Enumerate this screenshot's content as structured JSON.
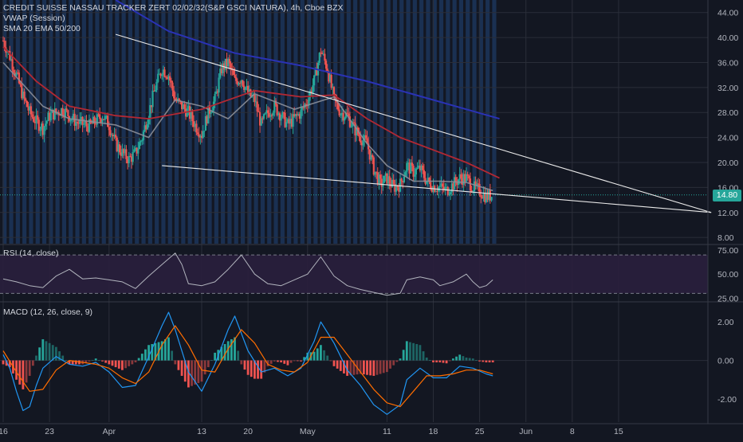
{
  "main_legend": {
    "title": "CREDIT SUISSE NASSAU TRACKER ZERT 02/02/32(S&P GSCI NATURA), 4h, Cboe BZX",
    "vwap": "VWAP (Session)",
    "ma": "SMA 20 EMA 50/200"
  },
  "rsi_legend": "RSI (14, close)",
  "macd_legend": "MACD (12, 26, close, 9)",
  "last_price_label": "14.80",
  "colors": {
    "background": "#131722",
    "session_band": "#1e3a63",
    "up_candle": "#26a69a",
    "down_candle": "#ef5350",
    "ema50": "#b22833",
    "ema200": "#2a32b5",
    "sma20": "#8c8f99",
    "trendline": "#e8e8e8",
    "rsi_line": "#b2b5be",
    "rsi_band": "#2a1f3d",
    "macd_line": "#2196f3",
    "signal_line": "#ff6d00"
  },
  "chart_data": [
    {
      "type": "candlestick",
      "title": "CREDIT SUISSE NASSAU TRACKER ZERT 02/02/32(S&P GSCI NATURA), 4h, Cboe BZX",
      "x_tick_labels": [
        "16",
        "23",
        "Apr",
        "13",
        "20",
        "May",
        "11",
        "18",
        "25",
        "Jun",
        "8",
        "15"
      ],
      "y_tick_labels": [
        "8.00",
        "12.00",
        "16.00",
        "20.00",
        "24.00",
        "28.00",
        "32.00",
        "36.00",
        "40.00",
        "44.00"
      ],
      "ylim": [
        7,
        46
      ],
      "last_price": 14.8,
      "close_path": [
        {
          "day": 0,
          "price": 39.5
        },
        {
          "day": 1,
          "price": 37.0
        },
        {
          "day": 2,
          "price": 34.0
        },
        {
          "day": 3,
          "price": 30.5
        },
        {
          "day": 4,
          "price": 28.0
        },
        {
          "day": 5,
          "price": 26.5
        },
        {
          "day": 6,
          "price": 25.5
        },
        {
          "day": 7,
          "price": 27.5
        },
        {
          "day": 9,
          "price": 28.5
        },
        {
          "day": 11,
          "price": 26.5
        },
        {
          "day": 13,
          "price": 25.8
        },
        {
          "day": 15,
          "price": 27.5
        },
        {
          "day": 16,
          "price": 26.0
        },
        {
          "day": 17,
          "price": 23.0
        },
        {
          "day": 18,
          "price": 21.5
        },
        {
          "day": 19,
          "price": 20.5
        },
        {
          "day": 20,
          "price": 21.5
        },
        {
          "day": 21,
          "price": 24.0
        },
        {
          "day": 22,
          "price": 28.0
        },
        {
          "day": 23,
          "price": 32.0
        },
        {
          "day": 24,
          "price": 35.0
        },
        {
          "day": 25,
          "price": 34.0
        },
        {
          "day": 26,
          "price": 30.0
        },
        {
          "day": 27,
          "price": 29.0
        },
        {
          "day": 28,
          "price": 28.0
        },
        {
          "day": 29,
          "price": 26.0
        },
        {
          "day": 30,
          "price": 24.5
        },
        {
          "day": 31,
          "price": 28.0
        },
        {
          "day": 32,
          "price": 30.0
        },
        {
          "day": 33,
          "price": 35.0
        },
        {
          "day": 34,
          "price": 36.0
        },
        {
          "day": 35,
          "price": 33.0
        },
        {
          "day": 36,
          "price": 33.5
        },
        {
          "day": 37,
          "price": 31.0
        },
        {
          "day": 38,
          "price": 30.0
        },
        {
          "day": 39,
          "price": 26.0
        },
        {
          "day": 40,
          "price": 28.0
        },
        {
          "day": 41,
          "price": 29.0
        },
        {
          "day": 42,
          "price": 27.5
        },
        {
          "day": 43,
          "price": 26.0
        },
        {
          "day": 44,
          "price": 27.0
        },
        {
          "day": 45,
          "price": 28.0
        },
        {
          "day": 46,
          "price": 30.0
        },
        {
          "day": 47,
          "price": 33.0
        },
        {
          "day": 48,
          "price": 38.0
        },
        {
          "day": 49,
          "price": 35.0
        },
        {
          "day": 50,
          "price": 30.0
        },
        {
          "day": 51,
          "price": 28.0
        },
        {
          "day": 52,
          "price": 27.5
        },
        {
          "day": 53,
          "price": 25.5
        },
        {
          "day": 54,
          "price": 24.0
        },
        {
          "day": 55,
          "price": 23.0
        },
        {
          "day": 56,
          "price": 19.0
        },
        {
          "day": 57,
          "price": 16.5
        },
        {
          "day": 58,
          "price": 17.5
        },
        {
          "day": 59,
          "price": 16.0
        },
        {
          "day": 60,
          "price": 16.5
        },
        {
          "day": 61,
          "price": 19.5
        },
        {
          "day": 62,
          "price": 18.5
        },
        {
          "day": 63,
          "price": 19.0
        },
        {
          "day": 64,
          "price": 17.0
        },
        {
          "day": 65,
          "price": 16.2
        },
        {
          "day": 66,
          "price": 16.0
        },
        {
          "day": 67,
          "price": 15.5
        },
        {
          "day": 68,
          "price": 16.5
        },
        {
          "day": 69,
          "price": 17.5
        },
        {
          "day": 70,
          "price": 17.5
        },
        {
          "day": 71,
          "price": 16.0
        },
        {
          "day": 72,
          "price": 15.5
        },
        {
          "day": 73,
          "price": 14.5
        },
        {
          "day": 74,
          "price": 14.8
        }
      ],
      "ema50": [
        {
          "day": 0,
          "value": 38.5
        },
        {
          "day": 5,
          "value": 33.0
        },
        {
          "day": 10,
          "value": 29.0
        },
        {
          "day": 17,
          "value": 27.5
        },
        {
          "day": 22,
          "value": 27.0
        },
        {
          "day": 30,
          "value": 28.5
        },
        {
          "day": 38,
          "value": 31.5
        },
        {
          "day": 45,
          "value": 30.5
        },
        {
          "day": 50,
          "value": 30.8
        },
        {
          "day": 55,
          "value": 27.0
        },
        {
          "day": 60,
          "value": 24.0
        },
        {
          "day": 65,
          "value": 22.0
        },
        {
          "day": 70,
          "value": 20.0
        },
        {
          "day": 75,
          "value": 17.5
        }
      ],
      "ema200": [
        {
          "day": 17,
          "value": 46.0
        },
        {
          "day": 25,
          "value": 41.0
        },
        {
          "day": 35,
          "value": 37.5
        },
        {
          "day": 45,
          "value": 35.5
        },
        {
          "day": 55,
          "value": 33.0
        },
        {
          "day": 65,
          "value": 30.0
        },
        {
          "day": 75,
          "value": 27.0
        }
      ],
      "sma20": [
        {
          "day": 0,
          "value": 36.0
        },
        {
          "day": 6,
          "value": 29.0
        },
        {
          "day": 10,
          "value": 27.0
        },
        {
          "day": 17,
          "value": 26.0
        },
        {
          "day": 22,
          "value": 24.0
        },
        {
          "day": 26,
          "value": 30.0
        },
        {
          "day": 30,
          "value": 29.0
        },
        {
          "day": 34,
          "value": 27.0
        },
        {
          "day": 38,
          "value": 31.0
        },
        {
          "day": 44,
          "value": 28.5
        },
        {
          "day": 50,
          "value": 30.5
        },
        {
          "day": 55,
          "value": 23.0
        },
        {
          "day": 58,
          "value": 19.5
        },
        {
          "day": 62,
          "value": 17.0
        },
        {
          "day": 66,
          "value": 17.0
        },
        {
          "day": 70,
          "value": 16.8
        },
        {
          "day": 74,
          "value": 15.5
        }
      ],
      "trendlines": [
        {
          "from": {
            "day": 17,
            "price": 40.5
          },
          "to": {
            "day": 107,
            "price": 12.0
          }
        },
        {
          "from": {
            "day": 24,
            "price": 19.5
          },
          "to": {
            "day": 107,
            "price": 12.0
          }
        }
      ]
    },
    {
      "type": "line",
      "title": "RSI (14, close)",
      "y_tick_labels": [
        "25.00",
        "50.00",
        "75.00"
      ],
      "ylim": [
        22,
        80
      ],
      "band": [
        30,
        70
      ],
      "values": [
        {
          "day": 0,
          "value": 45
        },
        {
          "day": 2,
          "value": 42
        },
        {
          "day": 4,
          "value": 38
        },
        {
          "day": 6,
          "value": 36
        },
        {
          "day": 8,
          "value": 48
        },
        {
          "day": 10,
          "value": 55
        },
        {
          "day": 12,
          "value": 45
        },
        {
          "day": 14,
          "value": 46
        },
        {
          "day": 16,
          "value": 44
        },
        {
          "day": 18,
          "value": 42
        },
        {
          "day": 20,
          "value": 35
        },
        {
          "day": 22,
          "value": 48
        },
        {
          "day": 24,
          "value": 60
        },
        {
          "day": 26,
          "value": 72
        },
        {
          "day": 27,
          "value": 60
        },
        {
          "day": 28,
          "value": 40
        },
        {
          "day": 30,
          "value": 38
        },
        {
          "day": 32,
          "value": 42
        },
        {
          "day": 34,
          "value": 55
        },
        {
          "day": 36,
          "value": 70
        },
        {
          "day": 38,
          "value": 50
        },
        {
          "day": 40,
          "value": 40
        },
        {
          "day": 42,
          "value": 38
        },
        {
          "day": 44,
          "value": 44
        },
        {
          "day": 46,
          "value": 50
        },
        {
          "day": 48,
          "value": 68
        },
        {
          "day": 50,
          "value": 48
        },
        {
          "day": 52,
          "value": 38
        },
        {
          "day": 54,
          "value": 34
        },
        {
          "day": 56,
          "value": 31
        },
        {
          "day": 58,
          "value": 28
        },
        {
          "day": 60,
          "value": 30
        },
        {
          "day": 61,
          "value": 44
        },
        {
          "day": 63,
          "value": 47
        },
        {
          "day": 65,
          "value": 44
        },
        {
          "day": 66,
          "value": 38
        },
        {
          "day": 68,
          "value": 42
        },
        {
          "day": 70,
          "value": 50
        },
        {
          "day": 71,
          "value": 42
        },
        {
          "day": 72,
          "value": 36
        },
        {
          "day": 73,
          "value": 38
        },
        {
          "day": 74,
          "value": 44
        }
      ]
    },
    {
      "type": "macd",
      "title": "MACD (12, 26, close, 9)",
      "y_tick_labels": [
        "-2.00",
        "0.00",
        "2.00"
      ],
      "ylim": [
        -3.2,
        3.0
      ],
      "macd_line": [
        {
          "day": 0,
          "value": 0.3
        },
        {
          "day": 1,
          "value": -0.4
        },
        {
          "day": 2,
          "value": -1.6
        },
        {
          "day": 3,
          "value": -2.6
        },
        {
          "day": 4,
          "value": -2.4
        },
        {
          "day": 5,
          "value": -1.3
        },
        {
          "day": 6,
          "value": -0.4
        },
        {
          "day": 8,
          "value": 0.2
        },
        {
          "day": 10,
          "value": -0.2
        },
        {
          "day": 12,
          "value": -0.3
        },
        {
          "day": 14,
          "value": -0.1
        },
        {
          "day": 16,
          "value": -0.6
        },
        {
          "day": 18,
          "value": -1.4
        },
        {
          "day": 20,
          "value": -1.3
        },
        {
          "day": 22,
          "value": 0.2
        },
        {
          "day": 24,
          "value": 1.8
        },
        {
          "day": 25,
          "value": 2.5
        },
        {
          "day": 26,
          "value": 1.6
        },
        {
          "day": 28,
          "value": -0.6
        },
        {
          "day": 30,
          "value": -1.6
        },
        {
          "day": 32,
          "value": -0.2
        },
        {
          "day": 34,
          "value": 1.6
        },
        {
          "day": 35,
          "value": 2.3
        },
        {
          "day": 37,
          "value": 0.5
        },
        {
          "day": 39,
          "value": -0.6
        },
        {
          "day": 41,
          "value": -0.4
        },
        {
          "day": 43,
          "value": -0.8
        },
        {
          "day": 45,
          "value": -0.4
        },
        {
          "day": 47,
          "value": 1.0
        },
        {
          "day": 48,
          "value": 2.0
        },
        {
          "day": 50,
          "value": 0.9
        },
        {
          "day": 52,
          "value": -0.5
        },
        {
          "day": 54,
          "value": -1.3
        },
        {
          "day": 56,
          "value": -2.3
        },
        {
          "day": 58,
          "value": -2.8
        },
        {
          "day": 60,
          "value": -2.3
        },
        {
          "day": 61,
          "value": -1.0
        },
        {
          "day": 63,
          "value": -0.4
        },
        {
          "day": 65,
          "value": -0.9
        },
        {
          "day": 67,
          "value": -0.9
        },
        {
          "day": 69,
          "value": -0.3
        },
        {
          "day": 71,
          "value": -0.4
        },
        {
          "day": 73,
          "value": -0.7
        },
        {
          "day": 74,
          "value": -0.8
        }
      ],
      "signal_line": [
        {
          "day": 0,
          "value": 0.5
        },
        {
          "day": 2,
          "value": -0.6
        },
        {
          "day": 4,
          "value": -1.6
        },
        {
          "day": 6,
          "value": -1.5
        },
        {
          "day": 8,
          "value": -0.5
        },
        {
          "day": 10,
          "value": 0.0
        },
        {
          "day": 12,
          "value": -0.1
        },
        {
          "day": 14,
          "value": -0.2
        },
        {
          "day": 16,
          "value": -0.4
        },
        {
          "day": 18,
          "value": -0.9
        },
        {
          "day": 20,
          "value": -1.2
        },
        {
          "day": 22,
          "value": -0.6
        },
        {
          "day": 24,
          "value": 0.8
        },
        {
          "day": 26,
          "value": 1.8
        },
        {
          "day": 28,
          "value": 0.8
        },
        {
          "day": 30,
          "value": -0.5
        },
        {
          "day": 32,
          "value": -0.6
        },
        {
          "day": 34,
          "value": 0.6
        },
        {
          "day": 36,
          "value": 1.6
        },
        {
          "day": 38,
          "value": 0.9
        },
        {
          "day": 40,
          "value": -0.2
        },
        {
          "day": 42,
          "value": -0.5
        },
        {
          "day": 44,
          "value": -0.6
        },
        {
          "day": 46,
          "value": -0.1
        },
        {
          "day": 48,
          "value": 1.2
        },
        {
          "day": 50,
          "value": 1.2
        },
        {
          "day": 52,
          "value": 0.3
        },
        {
          "day": 54,
          "value": -0.6
        },
        {
          "day": 56,
          "value": -1.5
        },
        {
          "day": 58,
          "value": -2.2
        },
        {
          "day": 60,
          "value": -2.4
        },
        {
          "day": 62,
          "value": -1.6
        },
        {
          "day": 64,
          "value": -0.8
        },
        {
          "day": 66,
          "value": -0.8
        },
        {
          "day": 68,
          "value": -0.7
        },
        {
          "day": 70,
          "value": -0.5
        },
        {
          "day": 72,
          "value": -0.5
        },
        {
          "day": 74,
          "value": -0.7
        }
      ]
    }
  ]
}
